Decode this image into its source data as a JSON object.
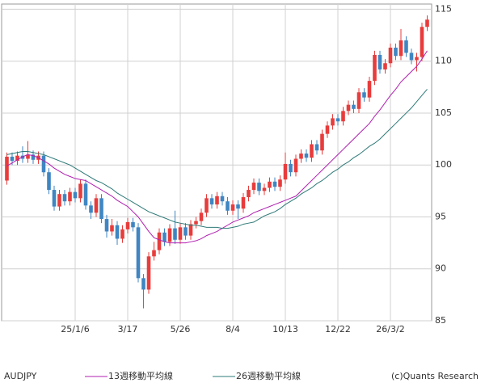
{
  "chart_data": {
    "type": "candlestick",
    "symbol": "AUDJPY",
    "credit": "(c)Quants Research",
    "categories": [
      null,
      null,
      null,
      null,
      null,
      null,
      null,
      null,
      null,
      null,
      null,
      null,
      null,
      "25/1/6",
      null,
      null,
      null,
      null,
      null,
      null,
      null,
      null,
      null,
      "3/17",
      null,
      null,
      null,
      null,
      null,
      null,
      null,
      null,
      null,
      "5/26",
      null,
      null,
      null,
      null,
      null,
      null,
      null,
      null,
      null,
      "8/4",
      null,
      null,
      null,
      null,
      null,
      null,
      null,
      null,
      null,
      "10/13",
      null,
      null,
      null,
      null,
      null,
      null,
      null,
      null,
      null,
      "12/22",
      null,
      null,
      null,
      null,
      null,
      null,
      null,
      null,
      null,
      "26/3/2",
      null,
      null,
      null,
      null,
      null,
      null,
      null
    ],
    "open": [
      98.5,
      100.8,
      100.4,
      100.9,
      100.6,
      101.0,
      100.5,
      100.9,
      99.3,
      97.6,
      96.0,
      97.2,
      96.5,
      97.4,
      96.8,
      98.2,
      96.1,
      95.4,
      96.8,
      94.8,
      93.6,
      94.2,
      92.9,
      93.8,
      94.5,
      94.0,
      89.1,
      88.0,
      91.2,
      91.8,
      93.5,
      92.6,
      93.9,
      92.8,
      94.0,
      93.2,
      94.3,
      94.6,
      95.4,
      96.8,
      96.2,
      97.0,
      96.5,
      95.6,
      96.2,
      95.8,
      96.9,
      97.6,
      98.3,
      97.5,
      97.8,
      98.4,
      97.9,
      98.6,
      100.1,
      99.3,
      100.6,
      101.1,
      100.7,
      102.0,
      101.4,
      103.0,
      103.8,
      104.5,
      104.2,
      105.2,
      105.8,
      105.4,
      107.0,
      106.5,
      108.1,
      110.6,
      109.2,
      109.8,
      111.3,
      110.5,
      112.0,
      110.8,
      110.1,
      110.4,
      113.3
    ],
    "high": [
      101.2,
      101.2,
      101.3,
      101.8,
      102.3,
      101.4,
      101.3,
      101.3,
      99.7,
      98.0,
      97.6,
      97.6,
      97.8,
      97.8,
      98.6,
      98.6,
      96.5,
      97.2,
      97.2,
      95.2,
      94.8,
      94.6,
      94.2,
      94.9,
      94.9,
      94.4,
      89.5,
      91.6,
      92.6,
      93.9,
      93.9,
      94.3,
      95.6,
      94.4,
      94.4,
      94.7,
      95.0,
      95.8,
      97.2,
      97.2,
      97.4,
      97.4,
      96.9,
      96.6,
      96.6,
      97.3,
      98.0,
      98.7,
      98.7,
      98.2,
      98.8,
      98.8,
      99.0,
      101.2,
      100.5,
      101.0,
      101.5,
      101.5,
      102.4,
      102.4,
      103.4,
      104.2,
      104.9,
      104.9,
      105.6,
      106.2,
      106.2,
      107.4,
      107.4,
      108.5,
      111.0,
      111.0,
      110.2,
      111.7,
      111.7,
      113.1,
      112.4,
      111.2,
      110.8,
      113.7,
      114.4
    ],
    "low": [
      98.1,
      100.0,
      100.0,
      100.2,
      100.2,
      100.1,
      100.1,
      98.9,
      97.2,
      95.6,
      95.6,
      96.1,
      96.1,
      96.4,
      96.4,
      95.7,
      94.8,
      95.0,
      94.4,
      93.0,
      93.2,
      92.3,
      92.5,
      93.4,
      93.6,
      88.7,
      86.2,
      87.6,
      90.8,
      91.4,
      92.2,
      92.2,
      92.4,
      92.4,
      92.8,
      92.8,
      93.9,
      94.2,
      95.0,
      95.8,
      95.8,
      96.1,
      95.2,
      95.2,
      94.8,
      95.4,
      96.5,
      97.2,
      97.1,
      97.1,
      97.4,
      97.5,
      97.5,
      98.2,
      98.9,
      98.9,
      100.2,
      100.3,
      100.3,
      101.0,
      101.0,
      102.6,
      103.4,
      103.8,
      103.8,
      104.8,
      105.0,
      105.0,
      106.1,
      106.1,
      107.7,
      108.8,
      108.8,
      109.4,
      110.1,
      110.1,
      110.4,
      109.7,
      109.0,
      110.0,
      112.9
    ],
    "close": [
      100.8,
      100.4,
      100.9,
      100.6,
      101.0,
      100.5,
      100.9,
      99.3,
      97.6,
      96.0,
      97.2,
      96.5,
      97.4,
      96.8,
      98.2,
      96.1,
      95.4,
      96.8,
      94.8,
      93.6,
      94.2,
      92.9,
      93.8,
      94.5,
      94.0,
      89.1,
      88.0,
      91.2,
      91.8,
      93.5,
      92.6,
      93.9,
      92.8,
      94.0,
      93.2,
      94.3,
      94.6,
      95.4,
      96.8,
      96.2,
      97.0,
      96.5,
      95.6,
      96.2,
      95.8,
      96.9,
      97.6,
      98.3,
      97.5,
      97.8,
      98.4,
      97.9,
      98.6,
      100.1,
      99.3,
      100.6,
      101.1,
      100.7,
      102.0,
      101.4,
      103.0,
      103.8,
      104.5,
      104.2,
      105.2,
      105.8,
      105.4,
      107.0,
      106.5,
      108.1,
      110.6,
      109.2,
      109.8,
      111.3,
      110.5,
      112.0,
      110.8,
      110.1,
      110.4,
      113.3,
      114.0
    ],
    "up_color": "#e83c3c",
    "down_color": "#3f86c2",
    "series": [
      {
        "name": "13週移動平均線",
        "color": "#b020b0",
        "values": [
          99.9,
          100.2,
          100.5,
          100.8,
          101.0,
          100.9,
          100.7,
          100.4,
          100.1,
          99.7,
          99.4,
          99.1,
          98.9,
          98.7,
          98.6,
          98.5,
          98.2,
          97.9,
          97.6,
          97.3,
          97.0,
          96.6,
          96.3,
          96.0,
          95.5,
          95.0,
          94.3,
          93.6,
          93.0,
          92.8,
          92.6,
          92.5,
          92.5,
          92.5,
          92.5,
          92.6,
          92.7,
          92.9,
          93.2,
          93.4,
          93.6,
          93.9,
          94.2,
          94.5,
          94.7,
          94.9,
          95.1,
          95.4,
          95.6,
          95.8,
          96.0,
          96.2,
          96.4,
          96.6,
          96.8,
          97.0,
          97.5,
          98.0,
          98.5,
          99.0,
          99.5,
          100.0,
          100.5,
          101.0,
          101.5,
          102.0,
          102.5,
          103.0,
          103.5,
          104.0,
          104.7,
          105.3,
          106.0,
          106.7,
          107.3,
          108.0,
          108.5,
          109.0,
          109.5,
          110.2,
          111.0
        ]
      },
      {
        "name": "26週移動平均線",
        "color": "#2e7a78",
        "values": [
          101.0,
          101.1,
          101.2,
          101.3,
          101.3,
          101.2,
          101.1,
          101.0,
          100.8,
          100.6,
          100.4,
          100.2,
          100.0,
          99.7,
          99.4,
          99.1,
          98.8,
          98.5,
          98.3,
          98.0,
          97.7,
          97.3,
          97.0,
          96.7,
          96.4,
          96.1,
          95.8,
          95.5,
          95.3,
          95.1,
          94.9,
          94.7,
          94.5,
          94.4,
          94.3,
          94.2,
          94.2,
          94.1,
          94.0,
          94.0,
          94.0,
          93.9,
          93.9,
          94.0,
          94.1,
          94.3,
          94.4,
          94.5,
          94.8,
          95.1,
          95.3,
          95.5,
          95.8,
          96.2,
          96.5,
          96.8,
          97.2,
          97.5,
          97.8,
          98.2,
          98.5,
          98.9,
          99.3,
          99.6,
          100.0,
          100.3,
          100.7,
          101.0,
          101.4,
          101.8,
          102.1,
          102.5,
          103.0,
          103.5,
          104.0,
          104.5,
          105.0,
          105.5,
          106.1,
          106.7,
          107.3
        ]
      }
    ],
    "ylim": [
      85,
      115.5
    ],
    "yticks": [
      85,
      90,
      95,
      100,
      105,
      110,
      115
    ],
    "grid": true
  }
}
